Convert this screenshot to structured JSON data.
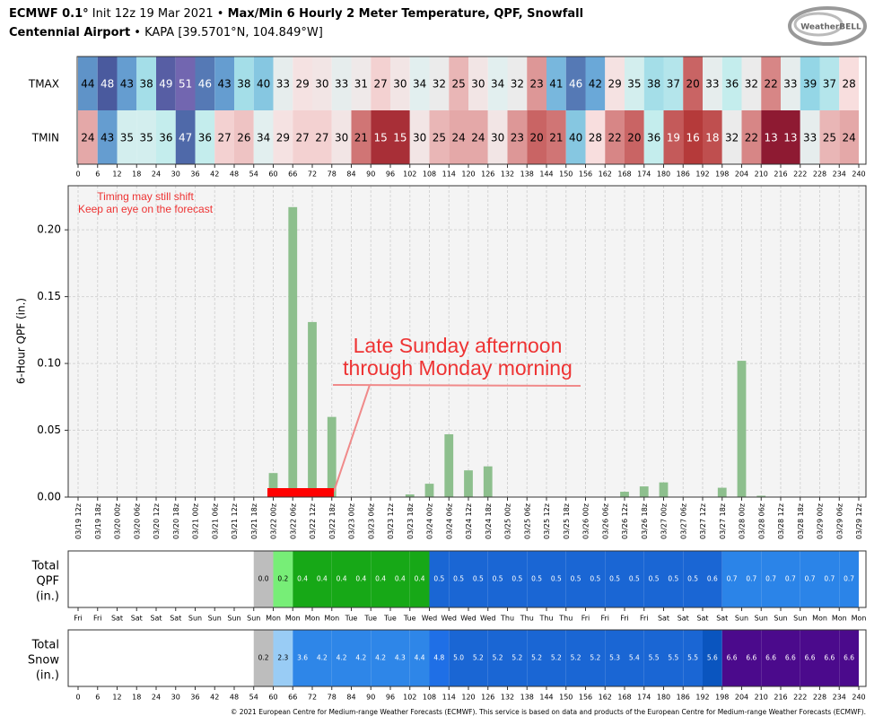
{
  "header": {
    "line1": [
      "ECMWF 0.1°",
      "Init 12z 19 Mar 2021 •",
      "Max/Min 6 Hourly 2 Meter Temperature, QPF, Snowfall"
    ],
    "line2": [
      "Centennial Airport",
      "• KAPA [39.5701°N, 104.849°W]"
    ],
    "logo": "WeatherBELL"
  },
  "chart_data": [
    {
      "type": "heatmap",
      "xlim": [
        0,
        240
      ],
      "xticks": [
        0,
        6,
        12,
        18,
        24,
        30,
        36,
        42,
        48,
        54,
        60,
        66,
        72,
        78,
        84,
        90,
        96,
        102,
        108,
        114,
        120,
        126,
        132,
        138,
        144,
        150,
        156,
        162,
        168,
        174,
        180,
        186,
        192,
        198,
        204,
        210,
        216,
        222,
        228,
        234,
        240
      ],
      "series": [
        {
          "name": "TMAX",
          "values": [
            44,
            48,
            43,
            38,
            49,
            51,
            46,
            43,
            38,
            40,
            33,
            29,
            30,
            33,
            31,
            27,
            30,
            34,
            32,
            25,
            30,
            34,
            32,
            23,
            41,
            46,
            42,
            29,
            35,
            38,
            37,
            20,
            33,
            36,
            32,
            22,
            33,
            39,
            37,
            28
          ]
        },
        {
          "name": "TMIN",
          "values": [
            24,
            43,
            35,
            35,
            36,
            47,
            36,
            27,
            26,
            34,
            29,
            27,
            27,
            30,
            21,
            15,
            15,
            30,
            25,
            24,
            24,
            30,
            23,
            20,
            21,
            40,
            28,
            22,
            20,
            36,
            19,
            16,
            18,
            32,
            22,
            13,
            13,
            33,
            25,
            24
          ]
        }
      ]
    },
    {
      "type": "bar",
      "ylabel": "6-Hour QPF (in.)",
      "color": "#8dbf8d",
      "grid": true,
      "categories": [
        "03/19 12z",
        "03/19 18z",
        "03/20 00z",
        "03/20 06z",
        "03/20 12z",
        "03/20 18z",
        "03/21 00z",
        "03/21 06z",
        "03/21 12z",
        "03/21 18z",
        "03/22 00z",
        "03/22 06z",
        "03/22 12z",
        "03/22 18z",
        "03/23 00z",
        "03/23 06z",
        "03/23 12z",
        "03/23 18z",
        "03/24 00z",
        "03/24 06z",
        "03/24 12z",
        "03/24 18z",
        "03/25 00z",
        "03/25 06z",
        "03/25 12z",
        "03/25 18z",
        "03/26 00z",
        "03/26 06z",
        "03/26 12z",
        "03/26 18z",
        "03/27 00z",
        "03/27 06z",
        "03/27 12z",
        "03/27 18z",
        "03/28 00z",
        "03/28 06z",
        "03/28 12z",
        "03/28 18z",
        "03/29 00z",
        "03/29 06z",
        "03/29 12z"
      ],
      "values": [
        0,
        0,
        0,
        0,
        0,
        0,
        0,
        0,
        0,
        0,
        0.018,
        0.217,
        0.131,
        0.06,
        0,
        0,
        0,
        0.002,
        0.01,
        0.047,
        0.02,
        0.023,
        0,
        0,
        0,
        0,
        0,
        0,
        0.004,
        0.008,
        0.011,
        0,
        0,
        0.007,
        0.102,
        0.001,
        0,
        0,
        0,
        0,
        0
      ],
      "ylim": [
        0,
        0.233
      ],
      "yticks": [
        {
          "value": 0,
          "label": "0.00"
        },
        {
          "value": 0.05,
          "label": "0.05"
        },
        {
          "value": 0.1,
          "label": "0.10"
        },
        {
          "value": 0.15,
          "label": "0.15"
        },
        {
          "value": 0.2,
          "label": "0.20"
        }
      ],
      "annotations": [
        "Timing may still shift",
        "Keep an eye on the forecast",
        "Late Sunday afternoon",
        "through Monday morning"
      ]
    },
    {
      "type": "strip",
      "ylabel": [
        "Total",
        "QPF",
        "(in.)"
      ],
      "xlim": [
        0,
        240
      ],
      "xticks": [
        {
          "value": 0,
          "label": "Fri"
        },
        {
          "value": 6,
          "label": "Fri"
        },
        {
          "value": 12,
          "label": "Sat"
        },
        {
          "value": 18,
          "label": "Sat"
        },
        {
          "value": 24,
          "label": "Sat"
        },
        {
          "value": 30,
          "label": "Sat"
        },
        {
          "value": 36,
          "label": "Sun"
        },
        {
          "value": 42,
          "label": "Sun"
        },
        {
          "value": 48,
          "label": "Sun"
        },
        {
          "value": 54,
          "label": "Sun"
        },
        {
          "value": 60,
          "label": "Mon"
        },
        {
          "value": 66,
          "label": "Mon"
        },
        {
          "value": 72,
          "label": "Mon"
        },
        {
          "value": 78,
          "label": "Mon"
        },
        {
          "value": 84,
          "label": "Tue"
        },
        {
          "value": 90,
          "label": "Tue"
        },
        {
          "value": 96,
          "label": "Tue"
        },
        {
          "value": 102,
          "label": "Tue"
        },
        {
          "value": 108,
          "label": "Wed"
        },
        {
          "value": 114,
          "label": "Wed"
        },
        {
          "value": 120,
          "label": "Wed"
        },
        {
          "value": 126,
          "label": "Wed"
        },
        {
          "value": 132,
          "label": "Thu"
        },
        {
          "value": 138,
          "label": "Thu"
        },
        {
          "value": 144,
          "label": "Thu"
        },
        {
          "value": 150,
          "label": "Thu"
        },
        {
          "value": 156,
          "label": "Fri"
        },
        {
          "value": 162,
          "label": "Fri"
        },
        {
          "value": 168,
          "label": "Fri"
        },
        {
          "value": 174,
          "label": "Fri"
        },
        {
          "value": 180,
          "label": "Sat"
        },
        {
          "value": 186,
          "label": "Sat"
        },
        {
          "value": 192,
          "label": "Sat"
        },
        {
          "value": 198,
          "label": "Sat"
        },
        {
          "value": 204,
          "label": "Sun"
        },
        {
          "value": 210,
          "label": "Sun"
        },
        {
          "value": 216,
          "label": "Sun"
        },
        {
          "value": 222,
          "label": "Sun"
        },
        {
          "value": 228,
          "label": "Mon"
        },
        {
          "value": 234,
          "label": "Mon"
        },
        {
          "value": 240,
          "label": "Mon"
        }
      ],
      "values": [
        null,
        null,
        null,
        null,
        null,
        null,
        null,
        null,
        null,
        0,
        0.2,
        0.4,
        0.4,
        0.4,
        0.4,
        0.4,
        0.4,
        0.4,
        0.5,
        0.5,
        0.5,
        0.5,
        0.5,
        0.5,
        0.5,
        0.5,
        0.5,
        0.5,
        0.5,
        0.5,
        0.5,
        0.5,
        0.6,
        0.7,
        0.7,
        0.7,
        0.7,
        0.7,
        0.7,
        0.7
      ],
      "value_labels": [
        null,
        null,
        null,
        null,
        null,
        null,
        null,
        null,
        null,
        "0.0",
        "0.2",
        "0.4",
        "0.4",
        "0.4",
        "0.4",
        "0.4",
        "0.4",
        "0.4",
        "0.5",
        "0.5",
        "0.5",
        "0.5",
        "0.5",
        "0.5",
        "0.5",
        "0.5",
        "0.5",
        "0.5",
        "0.5",
        "0.5",
        "0.5",
        "0.5",
        "0.6",
        "0.7",
        "0.7",
        "0.7",
        "0.7",
        "0.7",
        "0.7",
        "0.7"
      ]
    },
    {
      "type": "strip",
      "ylabel": [
        "Total",
        "Snow",
        "(in.)"
      ],
      "xlim": [
        0,
        240
      ],
      "xticks": [
        0,
        6,
        12,
        18,
        24,
        30,
        36,
        42,
        48,
        54,
        60,
        66,
        72,
        78,
        84,
        90,
        96,
        102,
        108,
        114,
        120,
        126,
        132,
        138,
        144,
        150,
        156,
        162,
        168,
        174,
        180,
        186,
        192,
        198,
        204,
        210,
        216,
        222,
        228,
        234,
        240
      ],
      "values": [
        null,
        null,
        null,
        null,
        null,
        null,
        null,
        null,
        null,
        0.2,
        2.3,
        3.6,
        4.2,
        4.2,
        4.2,
        4.2,
        4.3,
        4.4,
        4.8,
        5.0,
        5.2,
        5.2,
        5.2,
        5.2,
        5.2,
        5.2,
        5.2,
        5.3,
        5.4,
        5.5,
        5.5,
        5.5,
        5.6,
        6.6,
        6.6,
        6.6,
        6.6,
        6.6,
        6.6,
        6.6
      ],
      "value_labels": [
        null,
        null,
        null,
        null,
        null,
        null,
        null,
        null,
        null,
        "0.2",
        "2.3",
        "3.6",
        "4.2",
        "4.2",
        "4.2",
        "4.2",
        "4.3",
        "4.4",
        "4.8",
        "5.0",
        "5.2",
        "5.2",
        "5.2",
        "5.2",
        "5.2",
        "5.2",
        "5.2",
        "5.3",
        "5.4",
        "5.5",
        "5.5",
        "5.5",
        "5.6",
        "6.6",
        "6.6",
        "6.6",
        "6.6",
        "6.6",
        "6.6",
        "6.6"
      ]
    }
  ],
  "footer": "© 2021 European Centre for Medium-range Weather Forecasts (ECMWF). This service is based on data and products of the European Centre for Medium-range Weather Forecasts (ECMWF)."
}
